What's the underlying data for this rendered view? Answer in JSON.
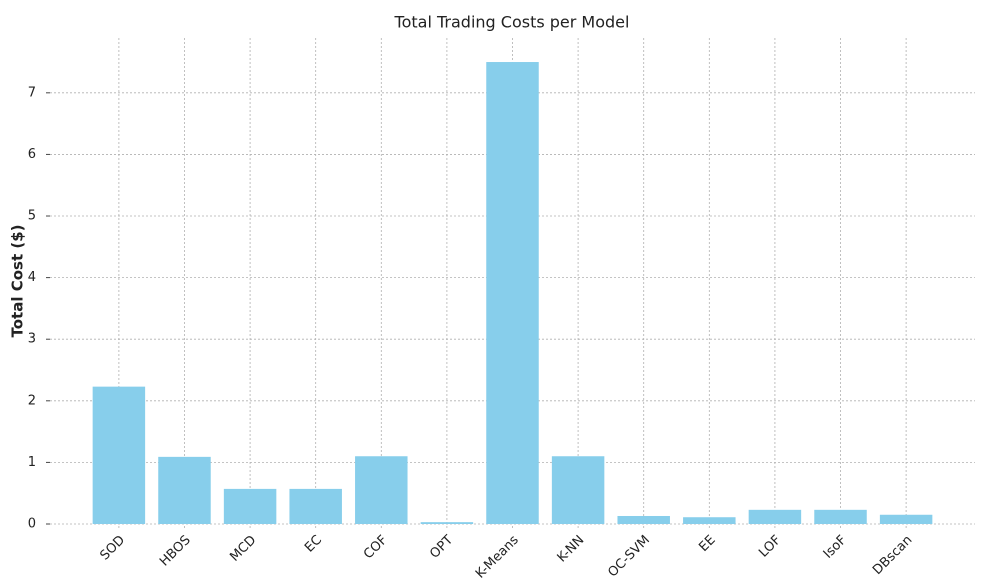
{
  "chart_data": {
    "type": "bar",
    "title": "Total Trading Costs per Model",
    "y_label": "Total Cost ($)",
    "categories": [
      "SOD",
      "HBOS",
      "MCD",
      "EC",
      "COF",
      "OPT",
      "K-Means",
      "K-NN",
      "OC-SVM",
      "EE",
      "LOF",
      "IsoF",
      "DBscan"
    ],
    "values": [
      2.23,
      1.09,
      0.57,
      0.57,
      1.1,
      0.03,
      7.5,
      1.1,
      0.13,
      0.11,
      0.23,
      0.23,
      0.15
    ],
    "color": "#87ceeb",
    "ylim": [
      0,
      7.89
    ],
    "yticks": [
      0,
      1,
      2,
      3,
      4,
      5,
      6,
      7
    ],
    "grid": true
  }
}
